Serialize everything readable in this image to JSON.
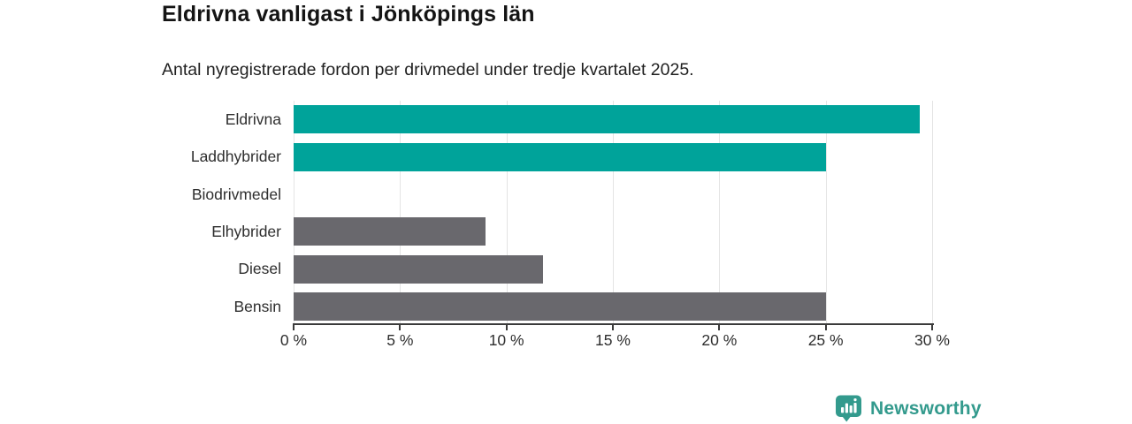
{
  "header": {
    "title": "Eldrivna vanligast i Jönköpings län",
    "subtitle": "Antal nyregistrerade fordon per drivmedel under tredje kvartalet 2025."
  },
  "chart_data": {
    "type": "bar",
    "orientation": "horizontal",
    "title": "Eldrivna vanligast i Jönköpings län",
    "subtitle": "Antal nyregistrerade fordon per drivmedel under tredje kvartalet 2025.",
    "categories": [
      "Eldrivna",
      "Laddhybrider",
      "Biodrivmedel",
      "Elhybrider",
      "Diesel",
      "Bensin"
    ],
    "values": [
      29.4,
      25.0,
      0,
      9.0,
      11.7,
      25.0
    ],
    "unit": "%",
    "bar_colors": [
      "#00a39a",
      "#00a39a",
      "#00a39a",
      "#69686d",
      "#69686d",
      "#69686d"
    ],
    "x_ticks": [
      {
        "value": 0,
        "label": "0 %"
      },
      {
        "value": 5,
        "label": "5 %"
      },
      {
        "value": 10,
        "label": "10 %"
      },
      {
        "value": 15,
        "label": "15 %"
      },
      {
        "value": 20,
        "label": "20 %"
      },
      {
        "value": 25,
        "label": "25 %"
      },
      {
        "value": 30,
        "label": "30 %"
      }
    ],
    "xlim": [
      0,
      30
    ],
    "grid": true,
    "legend": false
  },
  "colors": {
    "highlight_teal": "#00a39a",
    "neutral_gray": "#69686d",
    "gridline": "#e4e4e4",
    "axis": "#3b3b3b",
    "text": "#2e2e2e",
    "logo": "#339a8d"
  },
  "branding": {
    "logo_icon": "newsworthy-bubble-barchart-icon",
    "logo_text": "Newsworthy"
  }
}
